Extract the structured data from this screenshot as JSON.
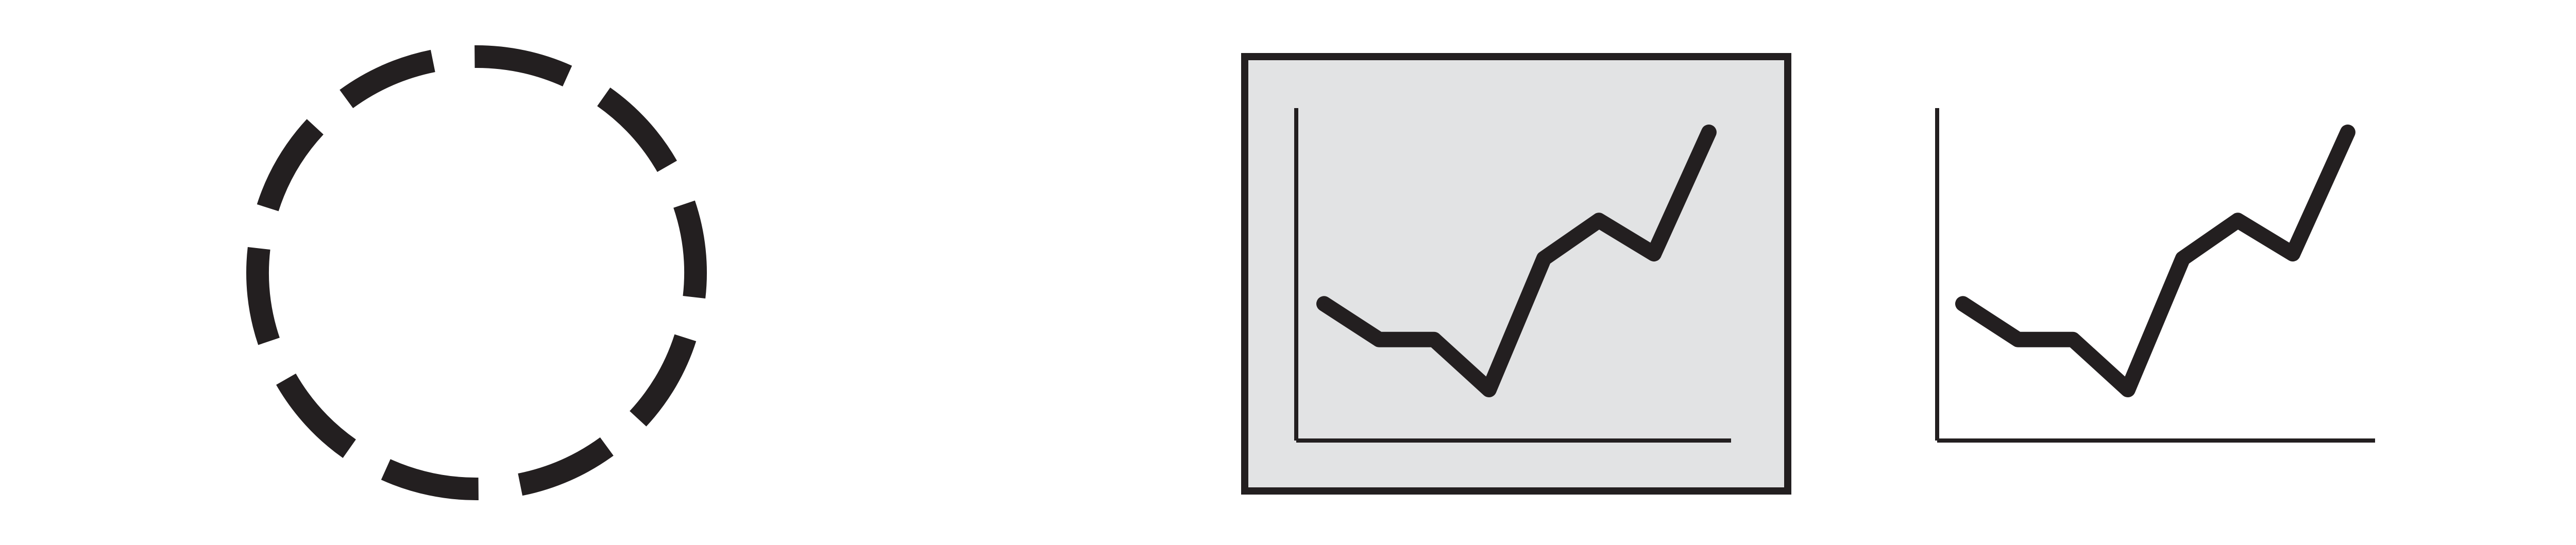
{
  "colors": {
    "stroke": "#231f20",
    "frame_fill": "#e2e3e4",
    "background": "#ffffff"
  },
  "icons": [
    {
      "name": "dashed-circle-icon",
      "dash_count": 10
    },
    {
      "name": "framed-line-chart-icon"
    },
    {
      "name": "line-chart-icon"
    }
  ],
  "chart_data": [
    {
      "type": "line",
      "framed": true,
      "x": [
        0,
        1,
        2,
        3,
        4,
        5,
        6,
        7,
        8
      ],
      "values": [
        1.8,
        1.05,
        1.05,
        0.0,
        2.75,
        3.55,
        2.85,
        5.4,
        5.4
      ],
      "points_drawn": 8,
      "ylim": [
        -0.4,
        7.5
      ],
      "grid": false
    },
    {
      "type": "line",
      "framed": false,
      "x": [
        0,
        1,
        2,
        3,
        4,
        5,
        6,
        7
      ],
      "values": [
        1.8,
        1.05,
        1.05,
        0.0,
        2.75,
        3.55,
        2.85,
        5.4
      ],
      "ylim": [
        -0.4,
        7.5
      ],
      "grid": false
    }
  ]
}
